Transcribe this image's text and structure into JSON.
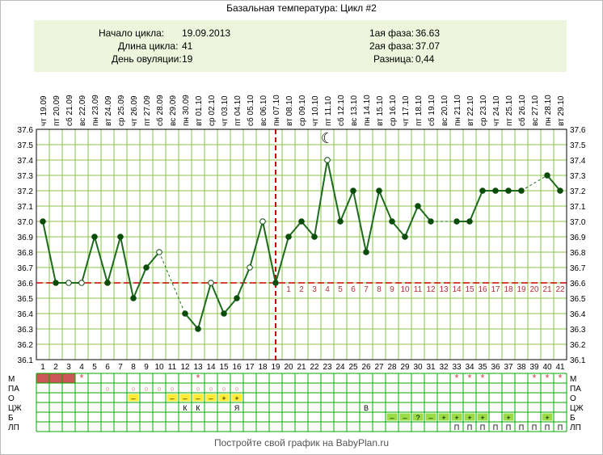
{
  "title": "Базальная температура: Цикл #2",
  "info": {
    "left": [
      {
        "label": "Начало цикла:",
        "value": "19.09.2013"
      },
      {
        "label": "Длина цикла:",
        "value": "41"
      },
      {
        "label": "День овуляции:",
        "value": "19"
      }
    ],
    "right": [
      {
        "label": "1ая фаза:",
        "value": "36.63"
      },
      {
        "label": "2ая фаза:",
        "value": "37.07"
      },
      {
        "label": "Разница:",
        "value": "0,44"
      }
    ]
  },
  "footer": "Постройте свой график на BabyPlan.ru",
  "chart_data": {
    "type": "line",
    "x": [
      1,
      2,
      3,
      4,
      5,
      6,
      7,
      8,
      9,
      10,
      11,
      12,
      13,
      14,
      15,
      16,
      17,
      18,
      19,
      20,
      21,
      22,
      23,
      24,
      25,
      26,
      27,
      28,
      29,
      30,
      31,
      32,
      33,
      34,
      35,
      36,
      37,
      38,
      39,
      40,
      41
    ],
    "dates": [
      "19.09",
      "20.09",
      "21.09",
      "22.09",
      "23.09",
      "24.09",
      "25.09",
      "26.09",
      "27.09",
      "28.09",
      "29.09",
      "30.09",
      "01.10",
      "02.10",
      "03.10",
      "04.10",
      "05.10",
      "06.10",
      "07.10",
      "08.10",
      "09.10",
      "10.10",
      "11.10",
      "12.10",
      "13.10",
      "14.10",
      "15.10",
      "16.10",
      "17.10",
      "18.10",
      "19.10",
      "20.10",
      "21.10",
      "22.10",
      "23.10",
      "24.10",
      "25.10",
      "26.10",
      "27.10",
      "28.10",
      "29.10"
    ],
    "weekdays": [
      "чт",
      "пт",
      "сб",
      "вс",
      "пн",
      "вт",
      "ср",
      "чт",
      "пт",
      "сб",
      "вс",
      "пн",
      "вт",
      "ср",
      "чт",
      "пт",
      "сб",
      "вс",
      "пн",
      "вт",
      "ср",
      "чт",
      "пт",
      "сб",
      "вс",
      "пн",
      "вт",
      "ср",
      "чт",
      "пт",
      "сб",
      "вс",
      "пн",
      "вт",
      "ср",
      "чт",
      "пт",
      "сб",
      "вс",
      "пн",
      "вт"
    ],
    "temperatures": [
      37.0,
      36.6,
      36.6,
      36.6,
      36.9,
      36.6,
      36.9,
      36.5,
      36.7,
      36.8,
      null,
      36.4,
      36.3,
      36.6,
      36.4,
      36.5,
      36.7,
      37.0,
      36.6,
      36.9,
      37.0,
      36.9,
      37.4,
      37.0,
      37.2,
      36.8,
      37.2,
      37.0,
      36.9,
      37.1,
      37.0,
      null,
      37.0,
      37.0,
      37.2,
      37.2,
      37.2,
      37.2,
      null,
      37.3,
      37.2
    ],
    "hollow_points": [
      3,
      4,
      10,
      14,
      17,
      18,
      23
    ],
    "dashed_segments": [
      [
        10,
        12
      ],
      [
        31,
        33
      ],
      [
        38,
        40
      ]
    ],
    "ylim": [
      36.1,
      37.6
    ],
    "yticks": [
      "36.1",
      "36.2",
      "36.3",
      "36.4",
      "36.5",
      "36.6",
      "36.7",
      "36.8",
      "36.9",
      "37.0",
      "37.1",
      "37.2",
      "37.3",
      "37.4",
      "37.5",
      "37.6"
    ],
    "coverline": 36.6,
    "ovulation_day": 19,
    "moon_symbol": "☾",
    "moon_day": 23,
    "luteal_labels": [
      "1",
      "2",
      "3",
      "4",
      "5",
      "6",
      "7",
      "8",
      "9",
      "10",
      "11",
      "12",
      "13",
      "14",
      "15",
      "16",
      "17",
      "18",
      "19",
      "20",
      "21",
      "22"
    ]
  },
  "rows": [
    {
      "label": "М",
      "fill_days": [
        1,
        2,
        3
      ],
      "fill_color": "#cc5555",
      "marks": [
        {
          "day": 4,
          "text": "*"
        },
        {
          "day": 13,
          "text": "*"
        },
        {
          "day": 33,
          "text": "*"
        },
        {
          "day": 34,
          "text": "*"
        },
        {
          "day": 35,
          "text": "*"
        },
        {
          "day": 39,
          "text": "*"
        },
        {
          "day": 40,
          "text": "*"
        },
        {
          "day": 41,
          "text": "*"
        }
      ]
    },
    {
      "label": "ПА",
      "marks": [
        {
          "day": 6,
          "text": "○"
        },
        {
          "day": 8,
          "text": "○"
        },
        {
          "day": 9,
          "text": "○"
        },
        {
          "day": 10,
          "text": "○"
        },
        {
          "day": 11,
          "text": "○"
        },
        {
          "day": 13,
          "text": "○"
        },
        {
          "day": 14,
          "text": "○"
        },
        {
          "day": 15,
          "text": "○"
        },
        {
          "day": 16,
          "text": "○"
        }
      ]
    },
    {
      "label": "О",
      "marks": [
        {
          "day": 8,
          "text": "–",
          "bg": "#ffee33"
        },
        {
          "day": 11,
          "text": "–",
          "bg": "#ffee33"
        },
        {
          "day": 12,
          "text": "–",
          "bg": "#ffee33"
        },
        {
          "day": 13,
          "text": "–",
          "bg": "#ffee33"
        },
        {
          "day": 14,
          "text": "–",
          "bg": "#ffee33"
        },
        {
          "day": 15,
          "text": "+",
          "bg": "#ffee33"
        },
        {
          "day": 16,
          "text": "+",
          "bg": "#ffee33"
        }
      ]
    },
    {
      "label": "ЦЖ",
      "marks": [
        {
          "day": 12,
          "text": "К"
        },
        {
          "day": 13,
          "text": "К"
        },
        {
          "day": 16,
          "text": "Я"
        },
        {
          "day": 26,
          "text": "В"
        }
      ]
    },
    {
      "label": "Б",
      "marks": [
        {
          "day": 28,
          "text": "–",
          "bg": "#99dd44"
        },
        {
          "day": 29,
          "text": "–",
          "bg": "#99dd44"
        },
        {
          "day": 30,
          "text": "?",
          "bg": "#99dd44"
        },
        {
          "day": 31,
          "text": "–",
          "bg": "#99dd44"
        },
        {
          "day": 32,
          "text": "+",
          "bg": "#99dd44"
        },
        {
          "day": 33,
          "text": "+",
          "bg": "#99dd44"
        },
        {
          "day": 34,
          "text": "+",
          "bg": "#99dd44"
        },
        {
          "day": 35,
          "text": "+",
          "bg": "#99dd44"
        },
        {
          "day": 37,
          "text": "+",
          "bg": "#99dd44"
        },
        {
          "day": 40,
          "text": "+",
          "bg": "#99dd44"
        }
      ]
    },
    {
      "label": "ЛП",
      "marks": [
        {
          "day": 33,
          "text": "П"
        },
        {
          "day": 34,
          "text": "П"
        },
        {
          "day": 35,
          "text": "П"
        },
        {
          "day": 36,
          "text": "П"
        },
        {
          "day": 37,
          "text": "П"
        },
        {
          "day": 38,
          "text": "П"
        },
        {
          "day": 39,
          "text": "П"
        },
        {
          "day": 40,
          "text": "П"
        },
        {
          "day": 41,
          "text": "П"
        }
      ]
    }
  ],
  "colors": {
    "line": "#1e6b1e",
    "point": "#0a4d0a",
    "grid": "#8bc34a",
    "coverline": "#cc0000",
    "ovulation": "#cc0000",
    "luteal_text": "#b03030",
    "star": "#cc4444",
    "table_border": "#00aa00",
    "info_bg": "#eef5dd"
  }
}
